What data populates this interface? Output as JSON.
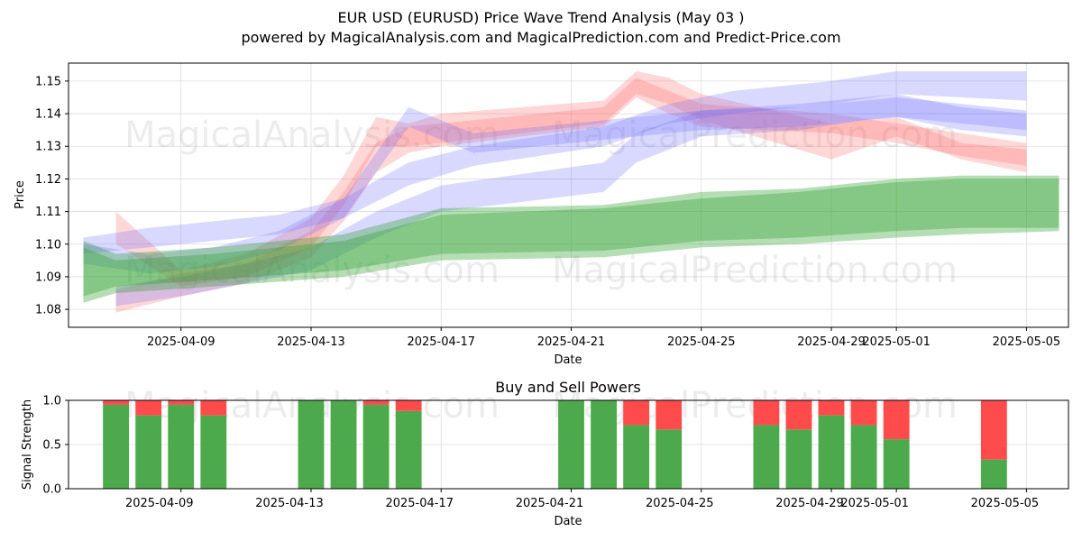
{
  "title": "EUR USD (EURUSD) Price Wave Trend Analysis (May 03 )",
  "subtitle": "powered by MagicalAnalysis.com and MagicalPrediction.com and Predict-Price.com",
  "watermarks": [
    "MagicalAnalysis.com",
    "MagicalPrediction.com"
  ],
  "colors": {
    "red": "#ff6060",
    "blue": "#6666ff",
    "green": "#2ca02c",
    "buy": "#4caa4c",
    "sell": "#ff4b4b",
    "grid": "#dddddd"
  },
  "chart_data": [
    {
      "type": "area",
      "name": "price-chart",
      "xlabel": "Date",
      "ylabel": "Price",
      "x_ticks": [
        "2025-04-09",
        "2025-04-13",
        "2025-04-17",
        "2025-04-21",
        "2025-04-25",
        "2025-04-29",
        "2025-05-01",
        "2025-05-05"
      ],
      "y_ticks": [
        "1.08",
        "1.09",
        "1.10",
        "1.11",
        "1.12",
        "1.13",
        "1.14",
        "1.15"
      ],
      "ylim": [
        1.0745,
        1.1555
      ],
      "xlim": [
        "2025-04-05T13:00",
        "2025-05-06T07:00"
      ],
      "grid": true,
      "bands": [
        {
          "color": "red",
          "x": [
            "2025-04-07",
            "2025-04-09",
            "2025-04-11",
            "2025-04-13",
            "2025-04-14",
            "2025-04-15",
            "2025-04-16",
            "2025-04-17",
            "2025-04-22",
            "2025-04-23",
            "2025-04-24",
            "2025-04-25",
            "2025-04-29",
            "2025-05-01",
            "2025-05-03",
            "2025-05-05"
          ],
          "upper": [
            1.086,
            1.091,
            1.094,
            1.104,
            1.116,
            1.131,
            1.136,
            1.137,
            1.142,
            1.151,
            1.147,
            1.143,
            1.14,
            1.137,
            1.134,
            1.131
          ],
          "lower": [
            1.079,
            1.084,
            1.088,
            1.096,
            1.107,
            1.122,
            1.128,
            1.13,
            1.136,
            1.145,
            1.14,
            1.136,
            1.134,
            1.131,
            1.127,
            1.124
          ]
        },
        {
          "color": "red",
          "x": [
            "2025-04-07",
            "2025-04-09",
            "2025-04-11",
            "2025-04-13",
            "2025-04-14",
            "2025-04-15",
            "2025-04-16",
            "2025-04-17",
            "2025-04-22",
            "2025-04-23",
            "2025-04-24",
            "2025-04-25",
            "2025-04-29",
            "2025-05-01",
            "2025-05-03",
            "2025-05-05"
          ],
          "upper": [
            1.11,
            1.092,
            1.097,
            1.108,
            1.121,
            1.139,
            1.137,
            1.14,
            1.144,
            1.153,
            1.151,
            1.146,
            1.137,
            1.139,
            1.131,
            1.129
          ],
          "lower": [
            1.1,
            1.087,
            1.09,
            1.099,
            1.112,
            1.13,
            1.13,
            1.131,
            1.137,
            1.146,
            1.143,
            1.138,
            1.126,
            1.133,
            1.126,
            1.122
          ]
        },
        {
          "color": "blue",
          "x": [
            "2025-04-06",
            "2025-04-08",
            "2025-04-10",
            "2025-04-12",
            "2025-04-14",
            "2025-04-16",
            "2025-04-18",
            "2025-04-22",
            "2025-04-24",
            "2025-04-26",
            "2025-04-29",
            "2025-05-01",
            "2025-05-03",
            "2025-05-05"
          ],
          "upper": [
            1.102,
            1.105,
            1.107,
            1.109,
            1.114,
            1.125,
            1.13,
            1.136,
            1.143,
            1.147,
            1.15,
            1.153,
            1.153,
            1.153
          ],
          "lower": [
            1.097,
            1.099,
            1.101,
            1.103,
            1.108,
            1.118,
            1.124,
            1.13,
            1.137,
            1.14,
            1.143,
            1.146,
            1.145,
            1.144
          ]
        },
        {
          "color": "blue",
          "x": [
            "2025-04-07",
            "2025-04-09",
            "2025-04-11",
            "2025-04-13",
            "2025-04-15",
            "2025-04-17",
            "2025-04-22",
            "2025-04-23",
            "2025-04-25",
            "2025-04-28",
            "2025-04-30",
            "2025-05-01",
            "2025-05-03",
            "2025-05-05"
          ],
          "upper": [
            1.087,
            1.09,
            1.094,
            1.099,
            1.11,
            1.118,
            1.125,
            1.134,
            1.141,
            1.143,
            1.145,
            1.146,
            1.142,
            1.14
          ],
          "lower": [
            1.081,
            1.084,
            1.088,
            1.092,
            1.102,
            1.11,
            1.116,
            1.125,
            1.133,
            1.135,
            1.138,
            1.139,
            1.135,
            1.133
          ]
        },
        {
          "color": "blue",
          "x": [
            "2025-04-06",
            "2025-04-08",
            "2025-04-10",
            "2025-04-12",
            "2025-04-14",
            "2025-04-15",
            "2025-04-16",
            "2025-04-18",
            "2025-04-22",
            "2025-04-25",
            "2025-04-28",
            "2025-05-01",
            "2025-05-03",
            "2025-05-05"
          ],
          "upper": [
            1.1,
            1.097,
            1.099,
            1.104,
            1.114,
            1.128,
            1.142,
            1.134,
            1.138,
            1.141,
            1.142,
            1.145,
            1.143,
            1.141
          ],
          "lower": [
            1.094,
            1.091,
            1.093,
            1.098,
            1.108,
            1.122,
            1.136,
            1.128,
            1.132,
            1.135,
            1.136,
            1.139,
            1.137,
            1.135
          ]
        },
        {
          "color": "green",
          "x": [
            "2025-04-06",
            "2025-04-07",
            "2025-04-10",
            "2025-04-14",
            "2025-04-17",
            "2025-04-22",
            "2025-04-25",
            "2025-04-28",
            "2025-05-01",
            "2025-05-03",
            "2025-05-06"
          ],
          "upper": [
            1.101,
            1.097,
            1.099,
            1.103,
            1.111,
            1.112,
            1.116,
            1.117,
            1.12,
            1.121,
            1.121
          ],
          "lower": [
            1.082,
            1.085,
            1.087,
            1.09,
            1.095,
            1.096,
            1.099,
            1.1,
            1.102,
            1.103,
            1.104
          ]
        },
        {
          "color": "green",
          "x": [
            "2025-04-06",
            "2025-04-07",
            "2025-04-10",
            "2025-04-14",
            "2025-04-17",
            "2025-04-22",
            "2025-04-25",
            "2025-04-28",
            "2025-05-01",
            "2025-05-03",
            "2025-05-06"
          ],
          "upper": [
            1.099,
            1.095,
            1.097,
            1.101,
            1.109,
            1.111,
            1.114,
            1.116,
            1.119,
            1.12,
            1.12
          ],
          "lower": [
            1.084,
            1.087,
            1.089,
            1.092,
            1.097,
            1.098,
            1.101,
            1.102,
            1.104,
            1.105,
            1.105
          ]
        }
      ]
    },
    {
      "type": "bar",
      "name": "signal-chart",
      "title": "Buy and Sell Powers",
      "xlabel": "Date",
      "ylabel": "Signal Strength",
      "x_ticks": [
        "2025-04-09",
        "2025-04-13",
        "2025-04-17",
        "2025-04-21",
        "2025-04-25",
        "2025-04-29",
        "2025-05-01",
        "2025-05-05"
      ],
      "y_ticks": [
        "0.0",
        "0.5",
        "1.0"
      ],
      "ylim": [
        0,
        1
      ],
      "xlim": [
        "2025-04-05T13:00",
        "2025-05-06T07:00"
      ],
      "grid": true,
      "series": [
        {
          "name": "buy",
          "color": "buy"
        },
        {
          "name": "sell",
          "color": "sell"
        }
      ],
      "categories": [
        "2025-04-07",
        "2025-04-08",
        "2025-04-09",
        "2025-04-10",
        "2025-04-13",
        "2025-04-14",
        "2025-04-15",
        "2025-04-16",
        "2025-04-21",
        "2025-04-22",
        "2025-04-23",
        "2025-04-24",
        "2025-04-27",
        "2025-04-28",
        "2025-04-29",
        "2025-04-30",
        "2025-05-01",
        "2025-05-04"
      ],
      "buy": [
        0.95,
        0.83,
        0.95,
        0.83,
        1.0,
        1.0,
        0.95,
        0.88,
        1.0,
        1.0,
        0.72,
        0.67,
        0.72,
        0.67,
        0.83,
        0.72,
        0.56,
        0.33
      ],
      "sell": [
        0.05,
        0.17,
        0.05,
        0.17,
        0.0,
        0.0,
        0.05,
        0.12,
        0.0,
        0.0,
        0.28,
        0.33,
        0.28,
        0.33,
        0.17,
        0.28,
        0.44,
        0.67
      ]
    }
  ]
}
